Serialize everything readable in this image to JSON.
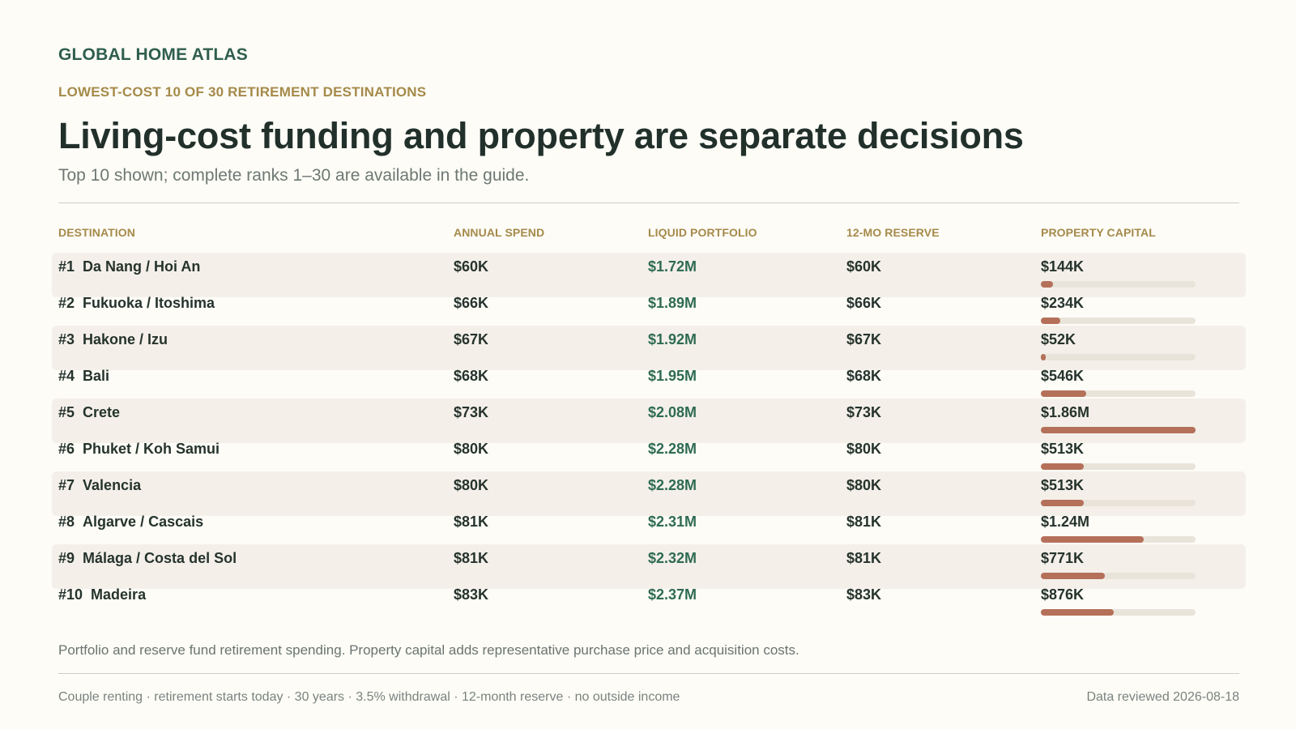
{
  "header": {
    "brand": "GLOBAL HOME ATLAS",
    "kicker": "LOWEST-COST 10 OF 30 RETIREMENT DESTINATIONS",
    "title": "Living-cost funding and property are separate decisions",
    "subtitle": "Top 10 shown; complete ranks 1–30 are available in the guide."
  },
  "columns": [
    "DESTINATION",
    "ANNUAL SPEND",
    "LIQUID PORTFOLIO",
    "12-MO RESERVE",
    "PROPERTY CAPITAL"
  ],
  "colors": {
    "accent_green": "#2f5e4e",
    "kicker_gold": "#a58a4a",
    "bar_fill": "#b5705a",
    "bar_track": "#e9e4da",
    "row_shade": "#f4f0e9"
  },
  "chart_data": {
    "type": "table",
    "bar_column": "PROPERTY CAPITAL",
    "bar_max": 1860000,
    "rows": [
      {
        "rank": "#1",
        "destination": "Da Nang / Hoi An",
        "annual_spend": "$60K",
        "liquid_portfolio": "$1.72M",
        "reserve": "$60K",
        "property_capital": "$144K",
        "property_value": 144000
      },
      {
        "rank": "#2",
        "destination": "Fukuoka / Itoshima",
        "annual_spend": "$66K",
        "liquid_portfolio": "$1.89M",
        "reserve": "$66K",
        "property_capital": "$234K",
        "property_value": 234000
      },
      {
        "rank": "#3",
        "destination": "Hakone / Izu",
        "annual_spend": "$67K",
        "liquid_portfolio": "$1.92M",
        "reserve": "$67K",
        "property_capital": "$52K",
        "property_value": 52000
      },
      {
        "rank": "#4",
        "destination": "Bali",
        "annual_spend": "$68K",
        "liquid_portfolio": "$1.95M",
        "reserve": "$68K",
        "property_capital": "$546K",
        "property_value": 546000
      },
      {
        "rank": "#5",
        "destination": "Crete",
        "annual_spend": "$73K",
        "liquid_portfolio": "$2.08M",
        "reserve": "$73K",
        "property_capital": "$1.86M",
        "property_value": 1860000
      },
      {
        "rank": "#6",
        "destination": "Phuket / Koh Samui",
        "annual_spend": "$80K",
        "liquid_portfolio": "$2.28M",
        "reserve": "$80K",
        "property_capital": "$513K",
        "property_value": 513000
      },
      {
        "rank": "#7",
        "destination": "Valencia",
        "annual_spend": "$80K",
        "liquid_portfolio": "$2.28M",
        "reserve": "$80K",
        "property_capital": "$513K",
        "property_value": 513000
      },
      {
        "rank": "#8",
        "destination": "Algarve / Cascais",
        "annual_spend": "$81K",
        "liquid_portfolio": "$2.31M",
        "reserve": "$81K",
        "property_capital": "$1.24M",
        "property_value": 1240000
      },
      {
        "rank": "#9",
        "destination": "Málaga / Costa del Sol",
        "annual_spend": "$81K",
        "liquid_portfolio": "$2.32M",
        "reserve": "$81K",
        "property_capital": "$771K",
        "property_value": 771000
      },
      {
        "rank": "#10",
        "destination": "Madeira",
        "annual_spend": "$83K",
        "liquid_portfolio": "$2.37M",
        "reserve": "$83K",
        "property_capital": "$876K",
        "property_value": 876000
      }
    ]
  },
  "footer": {
    "note": "Portfolio and reserve fund retirement spending. Property capital adds representative purchase price and acquisition costs.",
    "assumptions": "Couple renting · retirement starts today · 30 years · 3.5% withdrawal · 12-month reserve · no outside income",
    "reviewed": "Data reviewed 2026-08-18"
  }
}
